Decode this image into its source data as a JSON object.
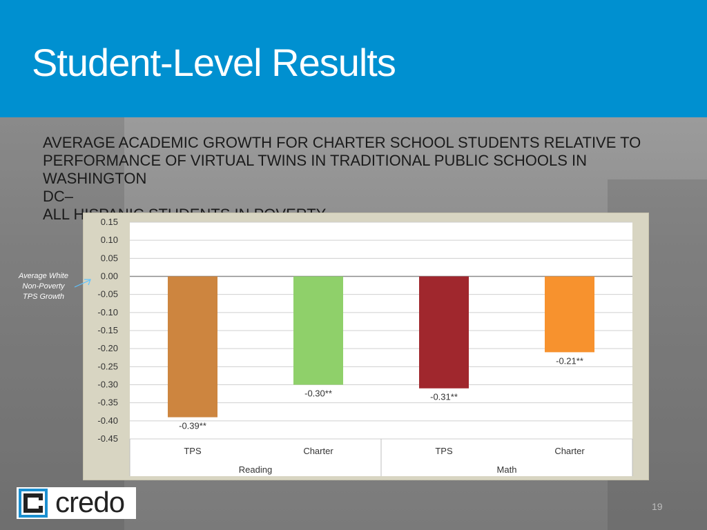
{
  "slide": {
    "title": "Student-Level Results",
    "subtitle_lines": [
      "AVERAGE ACADEMIC GROWTH FOR CHARTER SCHOOL STUDENTS RELATIVE TO",
      "PERFORMANCE OF VIRTUAL TWINS IN TRADITIONAL PUBLIC SCHOOLS IN WASHINGTON",
      "DC–",
      "ALL HISPANIC STUDENTS IN POVERTY"
    ],
    "annotation": "Average White Non-Poverty TPS Growth",
    "page_number": "19",
    "logo": {
      "text": "credo",
      "color": "#1b8fd0"
    },
    "colors": {
      "header": "#0090d0",
      "panel": "#d8d5c2"
    }
  },
  "chart_data": {
    "type": "bar",
    "categories": [
      "TPS",
      "Charter",
      "TPS",
      "Charter"
    ],
    "groups": [
      {
        "label": "Reading",
        "categories": [
          "TPS",
          "Charter"
        ]
      },
      {
        "label": "Math",
        "categories": [
          "TPS",
          "Charter"
        ]
      }
    ],
    "values": [
      -0.39,
      -0.3,
      -0.31,
      -0.21
    ],
    "data_labels": [
      "-0.39**",
      "-0.30**",
      "-0.31**",
      "-0.21**"
    ],
    "colors": [
      "#cd853f",
      "#8fd06a",
      "#a0272d",
      "#f7922e"
    ],
    "ylim": [
      -0.45,
      0.15
    ],
    "yticks": [
      "0.15",
      "0.10",
      "0.05",
      "0.00",
      "-0.05",
      "-0.10",
      "-0.15",
      "-0.20",
      "-0.25",
      "-0.30",
      "-0.35",
      "-0.40",
      "-0.45"
    ],
    "ytick_values": [
      0.15,
      0.1,
      0.05,
      0.0,
      -0.05,
      -0.1,
      -0.15,
      -0.2,
      -0.25,
      -0.3,
      -0.35,
      -0.4,
      -0.45
    ],
    "grid": true
  }
}
